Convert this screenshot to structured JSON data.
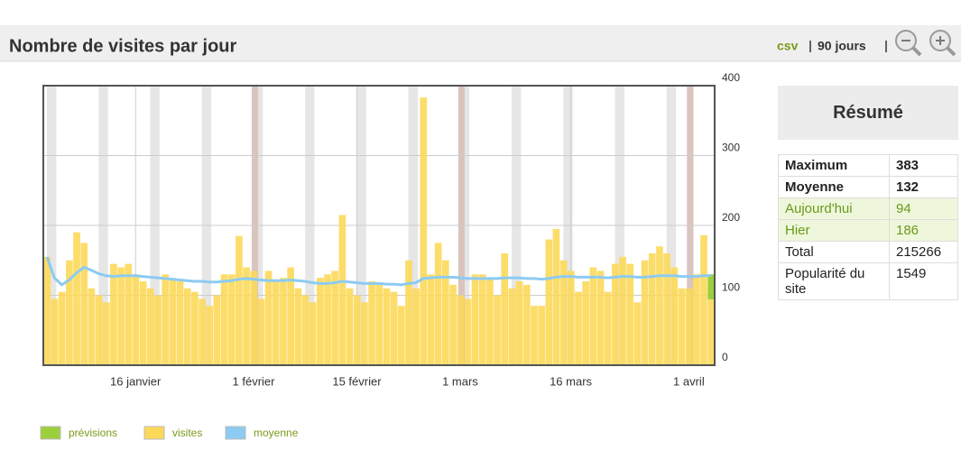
{
  "header": {
    "title": "Nombre de visites par jour",
    "links": [
      "csv",
      "90 jours"
    ]
  },
  "chart_data": {
    "type": "bar",
    "categories": [
      null,
      null,
      null,
      null,
      null,
      null,
      null,
      null,
      null,
      null,
      null,
      null,
      "16 janvier",
      null,
      null,
      null,
      null,
      null,
      null,
      null,
      null,
      null,
      null,
      null,
      null,
      null,
      null,
      null,
      "1 février",
      null,
      null,
      null,
      null,
      null,
      null,
      null,
      null,
      null,
      null,
      null,
      null,
      null,
      "15 février",
      null,
      null,
      null,
      null,
      null,
      null,
      null,
      null,
      null,
      null,
      null,
      null,
      null,
      "1 mars",
      null,
      null,
      null,
      null,
      null,
      null,
      null,
      null,
      null,
      null,
      null,
      null,
      null,
      null,
      "16 mars",
      null,
      null,
      null,
      null,
      null,
      null,
      null,
      null,
      null,
      null,
      null,
      null,
      null,
      null,
      null,
      "1 avril",
      null,
      null,
      null
    ],
    "series": [
      {
        "name": "prévisions",
        "color": "#9ccf3c",
        "values": [
          null,
          null,
          null,
          null,
          null,
          null,
          null,
          null,
          null,
          null,
          null,
          null,
          null,
          null,
          null,
          null,
          null,
          null,
          null,
          null,
          null,
          null,
          null,
          null,
          null,
          null,
          null,
          null,
          null,
          null,
          null,
          null,
          null,
          null,
          null,
          null,
          null,
          null,
          null,
          null,
          null,
          null,
          null,
          null,
          null,
          null,
          null,
          null,
          null,
          null,
          null,
          null,
          null,
          null,
          null,
          null,
          null,
          null,
          null,
          null,
          null,
          null,
          null,
          null,
          null,
          null,
          null,
          null,
          null,
          null,
          null,
          null,
          null,
          null,
          null,
          null,
          null,
          null,
          null,
          null,
          null,
          null,
          null,
          null,
          null,
          null,
          null,
          null,
          null,
          null,
          36
        ]
      },
      {
        "name": "visites",
        "color": "#fcd95a",
        "values": [
          155,
          95,
          105,
          150,
          190,
          175,
          110,
          100,
          90,
          145,
          140,
          145,
          130,
          120,
          110,
          100,
          130,
          125,
          120,
          110,
          105,
          95,
          85,
          100,
          130,
          130,
          185,
          140,
          135,
          95,
          135,
          120,
          125,
          140,
          110,
          100,
          90,
          125,
          130,
          135,
          215,
          110,
          100,
          90,
          120,
          115,
          110,
          105,
          85,
          150,
          110,
          383,
          130,
          175,
          150,
          115,
          100,
          95,
          130,
          130,
          125,
          100,
          160,
          110,
          120,
          115,
          85,
          85,
          180,
          195,
          150,
          135,
          105,
          120,
          140,
          135,
          105,
          145,
          155,
          145,
          90,
          150,
          160,
          170,
          160,
          140,
          110,
          110,
          130,
          186,
          94
        ]
      },
      {
        "name": "moyenne",
        "color": "#8ccbf2",
        "values": [
          155,
          125,
          115,
          122,
          132,
          140,
          136,
          131,
          128,
          127,
          128,
          128,
          128,
          127,
          126,
          125,
          124,
          123,
          122,
          121,
          120,
          120,
          119,
          119,
          120,
          121,
          123,
          124,
          123,
          122,
          121,
          121,
          121,
          122,
          121,
          120,
          118,
          117,
          117,
          118,
          120,
          119,
          118,
          117,
          117,
          117,
          116,
          116,
          115,
          117,
          118,
          124,
          125,
          126,
          126,
          126,
          125,
          124,
          124,
          124,
          124,
          124,
          125,
          125,
          125,
          124,
          124,
          123,
          124,
          126,
          127,
          127,
          126,
          126,
          126,
          126,
          125,
          126,
          127,
          127,
          126,
          126,
          127,
          128,
          128,
          128,
          127,
          127,
          127,
          128,
          128
        ]
      }
    ],
    "ylim": [
      0,
      400
    ],
    "yticks": [
      0,
      100,
      200,
      300,
      400
    ],
    "grid": true
  },
  "summary": {
    "title": "Résumé",
    "rows": [
      [
        "Maximum",
        "383"
      ],
      [
        "Moyenne",
        "132"
      ],
      [
        "Aujourd'hui",
        "94"
      ],
      [
        "Hier",
        "186"
      ],
      [
        "Total",
        "215266"
      ],
      [
        "Popularité du site",
        "1549"
      ]
    ]
  }
}
